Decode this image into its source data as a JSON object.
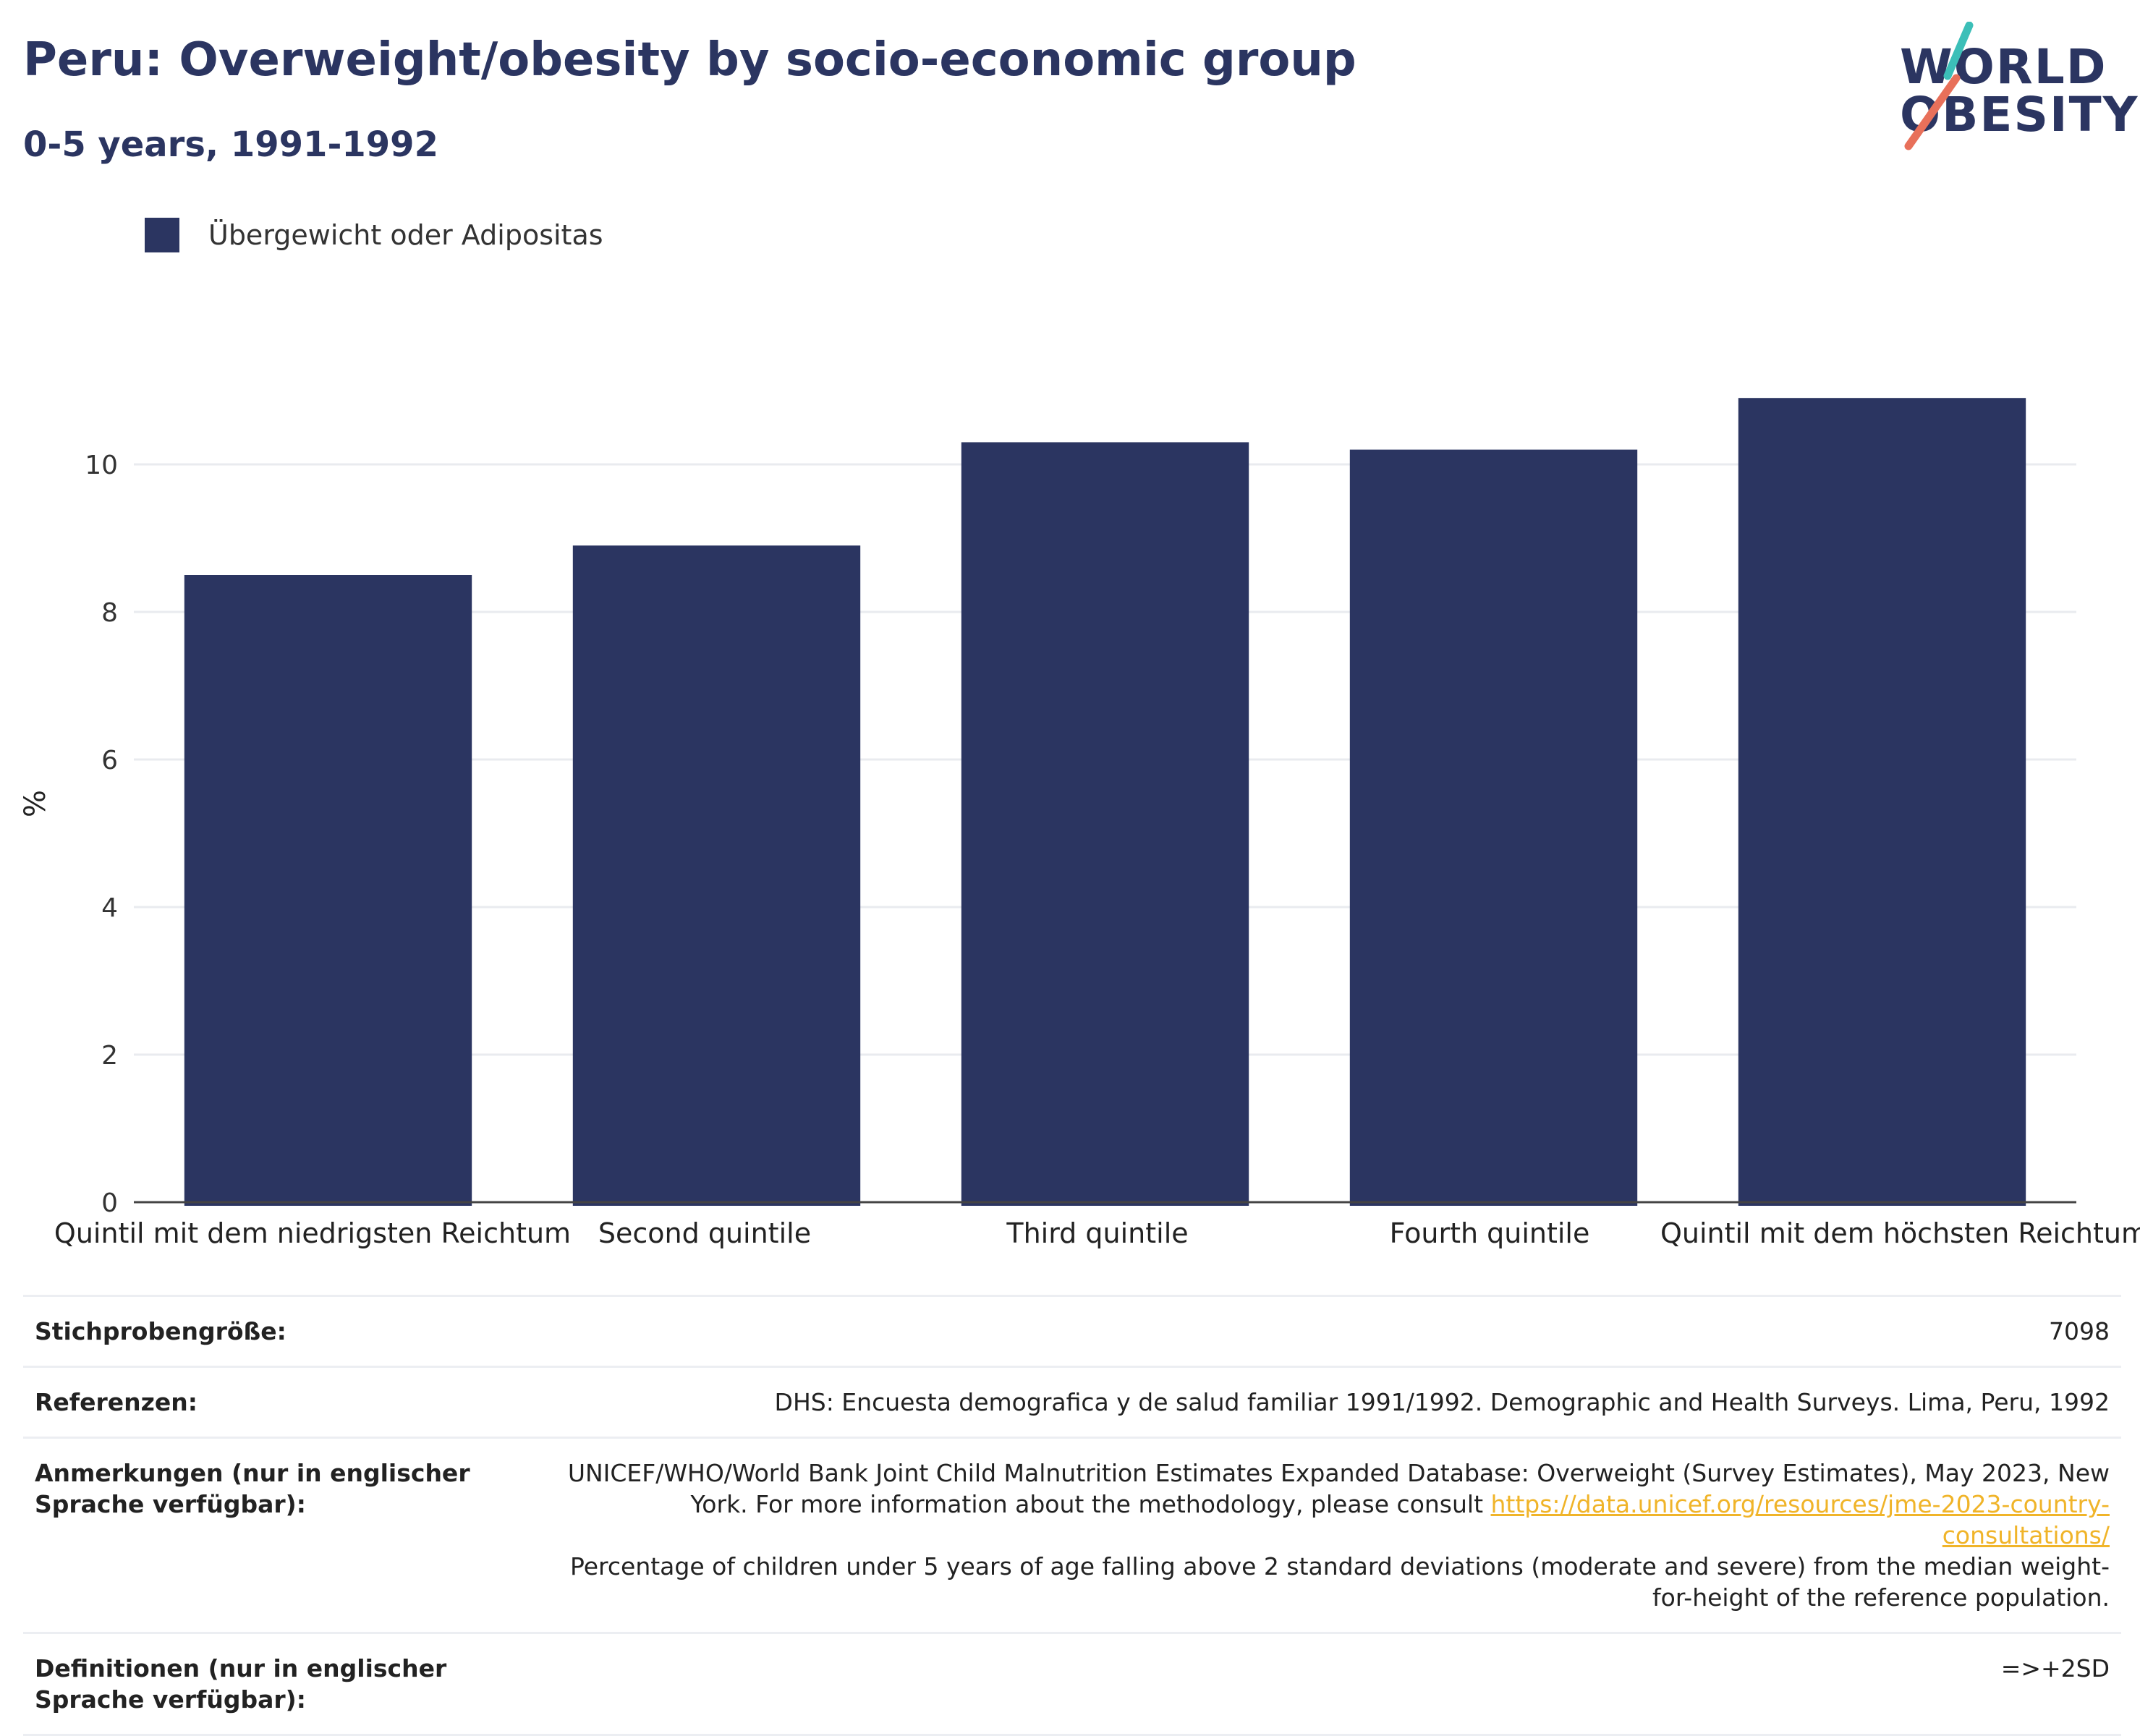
{
  "header": {
    "title": "Peru: Overweight/obesity by socio-economic group",
    "subtitle": "0-5 years, 1991-1992"
  },
  "logo": {
    "line1": "WORLD",
    "line2": "OBESITY",
    "accent_colors": [
      "#3cbfb8",
      "#e8705a"
    ]
  },
  "colors": {
    "bar": "#2b3561",
    "grid": "#e9ebef",
    "axis": "#444444",
    "title": "#2b3561",
    "link": "#f0b429"
  },
  "chart_data": {
    "type": "bar",
    "categories": [
      "Quintil mit dem niedrigsten Reichtum",
      "Second quintile",
      "Third quintile",
      "Fourth quintile",
      "Quintil mit dem höchsten Reichtum"
    ],
    "series": [
      {
        "name": "Übergewicht oder Adipositas",
        "values": [
          8.5,
          8.9,
          10.3,
          10.2,
          10.9
        ]
      }
    ],
    "ylabel": "%",
    "ylim": [
      0,
      11
    ],
    "yticks": [
      0,
      2,
      4,
      6,
      8,
      10
    ],
    "grid": true,
    "legend": "top-left"
  },
  "info": {
    "sample_label": "Stichprobengröße:",
    "sample_value": "7098",
    "references_label": "Referenzen:",
    "references_value": "DHS: Encuesta demografica y de salud familiar 1991/1992. Demographic and Health Surveys. Lima, Peru, 1992",
    "notes_label": "Anmerkungen (nur in englischer Sprache verfügbar):",
    "notes_text_1": "UNICEF/WHO/World Bank Joint Child Malnutrition Estimates Expanded Database: Overweight (Survey Estimates), May 2023, New York. For more information about the methodology, please consult ",
    "notes_link": "https://data.unicef.org/resources/jme-2023-country-consultations/",
    "notes_text_2": "Percentage of children under 5 years of age falling above 2 standard deviations (moderate and severe) from the median weight-for-height of the reference population.",
    "definitions_label": "Definitionen (nur in englischer Sprache verfügbar):",
    "definitions_value": "=>+2SD"
  }
}
